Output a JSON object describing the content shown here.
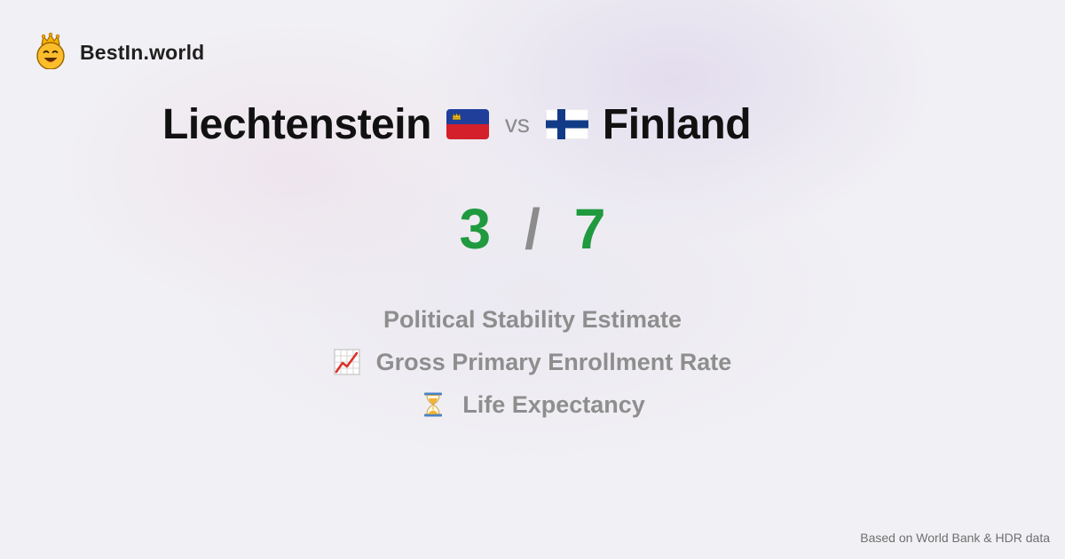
{
  "brand": {
    "name": "BestIn.world",
    "logo_icon": "crowned-smiley-icon"
  },
  "comparison": {
    "left": {
      "country": "Liechtenstein",
      "flag_icon": "liechtenstein-flag-icon",
      "score": "3"
    },
    "vs_label": "vs",
    "right": {
      "country": "Finland",
      "flag_icon": "finland-flag-icon",
      "score": "7"
    },
    "separator": "/"
  },
  "metrics": [
    {
      "label": "Political Stability Estimate",
      "icon": null
    },
    {
      "label": "Gross Primary Enrollment Rate",
      "icon": "chart-increasing-icon"
    },
    {
      "label": "Life Expectancy",
      "icon": "hourglass-icon"
    }
  ],
  "footer": {
    "note": "Based on World Bank & HDR data"
  },
  "colors": {
    "score": "#1f9a3f",
    "muted": "#8e8e8e",
    "background": "#f1f0f4"
  }
}
